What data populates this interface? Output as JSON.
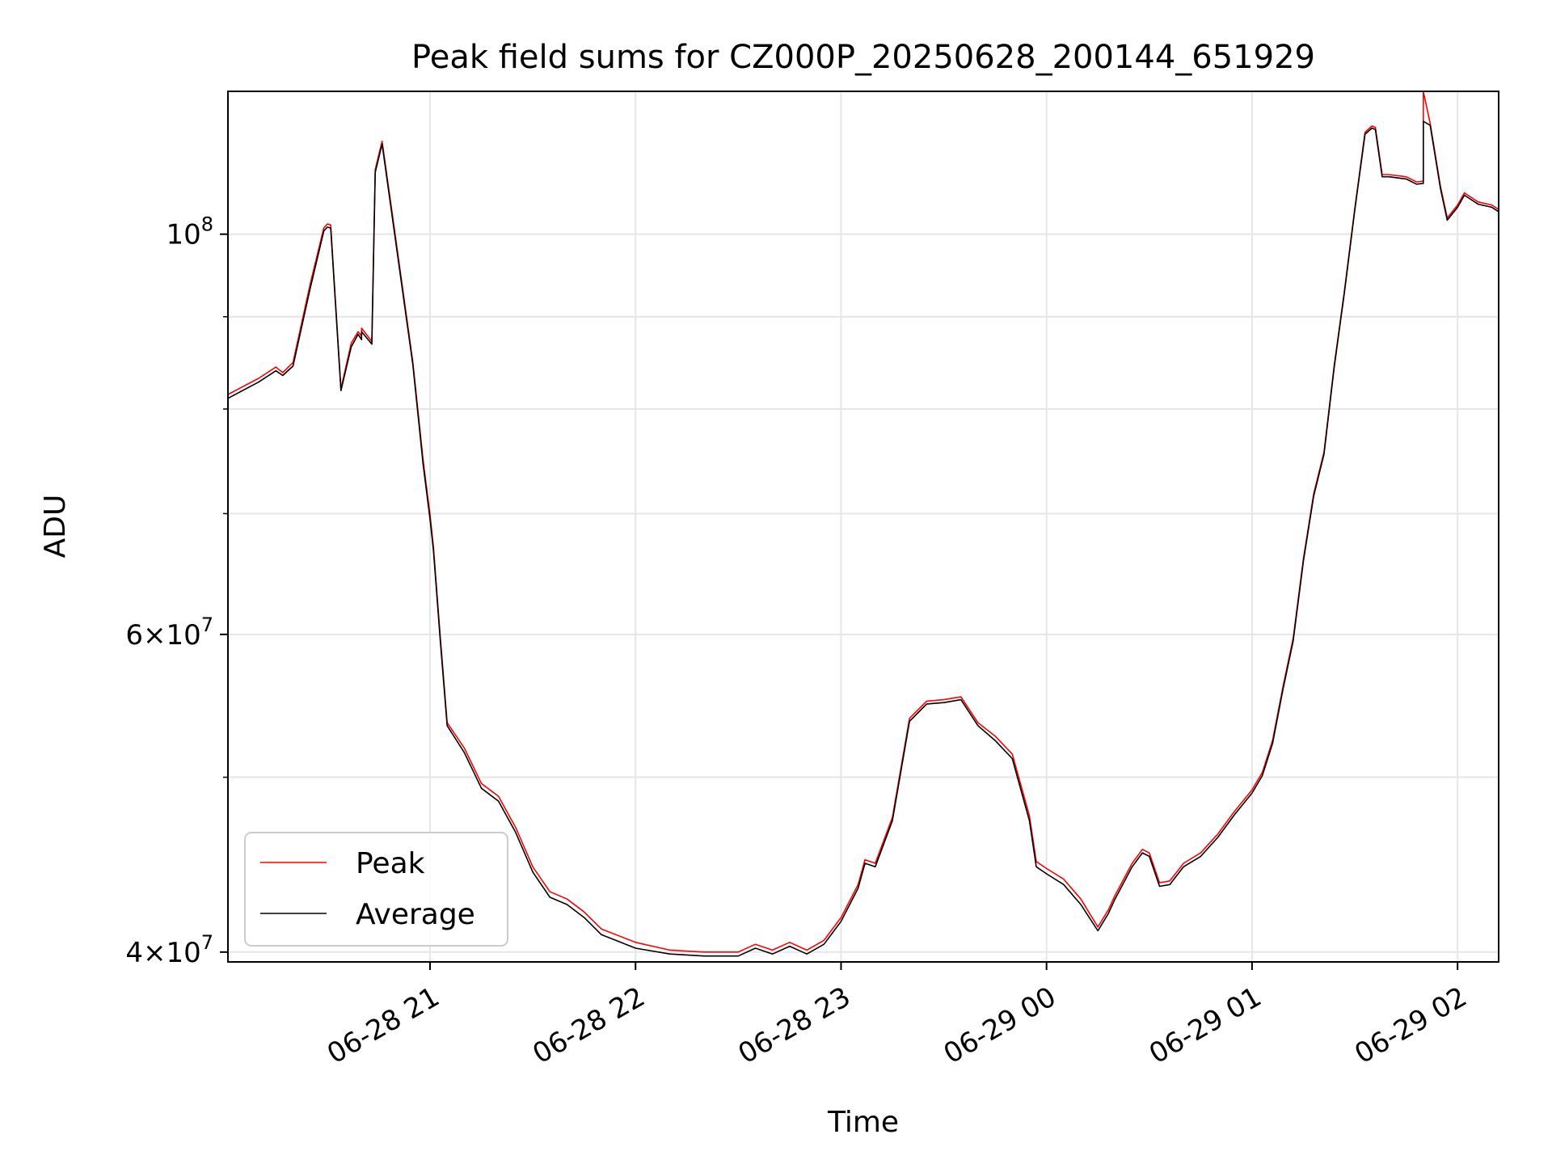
{
  "chart_data": {
    "type": "line",
    "title": "Peak field sums for CZ000P_20250628_200144_651929",
    "xlabel": "Time",
    "ylabel": "ADU",
    "yscale": "log",
    "ylim": [
      39500000,
      120000000
    ],
    "xlim": [
      "06-28 20:01",
      "06-29 02:12"
    ],
    "grid": true,
    "legend_position": "lower-left",
    "x_ticks": [
      {
        "label": "06-28 21",
        "t": "06-28 21:00"
      },
      {
        "label": "06-28 22",
        "t": "06-28 22:00"
      },
      {
        "label": "06-28 23",
        "t": "06-28 23:00"
      },
      {
        "label": "06-29 00",
        "t": "06-29 00:00"
      },
      {
        "label": "06-29 01",
        "t": "06-29 01:00"
      },
      {
        "label": "06-29 02",
        "t": "06-29 02:00"
      }
    ],
    "y_major_ticks": [
      {
        "mant": "4",
        "exp": "7",
        "value": 40000000
      },
      {
        "mant": "6",
        "exp": "7",
        "value": 60000000
      },
      {
        "mant": "",
        "exp": "8",
        "value": 100000000
      }
    ],
    "y_minor_gridlines": [
      50000000,
      70000000,
      80000000,
      90000000
    ],
    "x": [
      "06-28 20:01",
      "06-28 20:10",
      "06-28 20:15",
      "06-28 20:17",
      "06-28 20:20",
      "06-28 20:25",
      "06-28 20:29",
      "06-28 20:30",
      "06-28 20:31",
      "06-28 20:34",
      "06-28 20:37",
      "06-28 20:39",
      "06-28 20:40",
      "06-28 20:40",
      "06-28 20:43",
      "06-28 20:44",
      "06-28 20:46",
      "06-28 20:50",
      "06-28 20:55",
      "06-28 20:58",
      "06-28 21:00",
      "06-28 21:01",
      "06-28 21:02",
      "06-28 21:03",
      "06-28 21:05",
      "06-28 21:10",
      "06-28 21:15",
      "06-28 21:20",
      "06-28 21:25",
      "06-28 21:30",
      "06-28 21:35",
      "06-28 21:40",
      "06-28 21:45",
      "06-28 21:50",
      "06-28 22:00",
      "06-28 22:10",
      "06-28 22:20",
      "06-28 22:30",
      "06-28 22:35",
      "06-28 22:40",
      "06-28 22:45",
      "06-28 22:50",
      "06-28 22:55",
      "06-28 23:00",
      "06-28 23:05",
      "06-28 23:07",
      "06-28 23:10",
      "06-28 23:15",
      "06-28 23:20",
      "06-28 23:25",
      "06-28 23:30",
      "06-28 23:35",
      "06-28 23:40",
      "06-28 23:45",
      "06-28 23:50",
      "06-28 23:55",
      "06-28 23:57",
      "06-29 00:00",
      "06-29 00:05",
      "06-29 00:10",
      "06-29 00:15",
      "06-29 00:18",
      "06-29 00:20",
      "06-29 00:25",
      "06-29 00:28",
      "06-29 00:30",
      "06-29 00:33",
      "06-29 00:36",
      "06-29 00:40",
      "06-29 00:45",
      "06-29 00:50",
      "06-29 00:55",
      "06-29 01:00",
      "06-29 01:03",
      "06-29 01:06",
      "06-29 01:09",
      "06-29 01:12",
      "06-29 01:15",
      "06-29 01:18",
      "06-29 01:21",
      "06-29 01:24",
      "06-29 01:27",
      "06-29 01:30",
      "06-29 01:33",
      "06-29 01:35",
      "06-29 01:36",
      "06-29 01:38",
      "06-29 01:40",
      "06-29 01:45",
      "06-29 01:48",
      "06-29 01:50",
      "06-29 01:50",
      "06-29 01:52",
      "06-29 01:55",
      "06-29 01:57",
      "06-29 02:00",
      "06-29 02:02",
      "06-29 02:06",
      "06-29 02:10",
      "06-29 02:12"
    ],
    "series": [
      {
        "name": "Peak",
        "color": "#ff0000",
        "values": [
          81500000,
          83200000,
          84400000,
          83800000,
          84900000,
          93800000,
          100800000,
          101300000,
          101200000,
          82100000,
          87000000,
          88300000,
          87800000,
          88700000,
          87200000,
          108600000,
          112600000,
          99400000,
          84900000,
          74900000,
          69900000,
          67100000,
          63300000,
          59800000,
          53600000,
          51900000,
          49600000,
          48800000,
          46900000,
          44600000,
          43200000,
          42800000,
          42100000,
          41200000,
          40500000,
          40100000,
          40000000,
          40000000,
          40400000,
          40100000,
          40500000,
          40100000,
          40600000,
          41800000,
          43600000,
          45000000,
          44800000,
          47500000,
          53900000,
          55100000,
          55200000,
          55400000,
          53600000,
          52700000,
          51500000,
          47600000,
          44900000,
          44500000,
          43900000,
          42800000,
          41300000,
          42200000,
          43000000,
          44800000,
          45600000,
          45400000,
          43700000,
          43800000,
          44800000,
          45400000,
          46500000,
          47900000,
          49200000,
          50300000,
          52400000,
          56100000,
          59700000,
          66100000,
          71800000,
          75700000,
          84600000,
          93100000,
          103300000,
          113900000,
          114800000,
          114600000,
          107900000,
          107900000,
          107600000,
          106900000,
          107000000,
          120000000,
          115200000,
          106300000,
          102100000,
          103800000,
          105400000,
          104200000,
          103800000,
          103200000
        ]
      },
      {
        "name": "Average",
        "color": "#000000",
        "values": [
          81100000,
          82800000,
          84000000,
          83500000,
          84500000,
          93300000,
          100400000,
          100900000,
          100800000,
          81900000,
          86600000,
          88000000,
          87400000,
          88300000,
          86900000,
          108200000,
          112200000,
          99000000,
          84600000,
          74500000,
          69500000,
          66800000,
          63000000,
          59500000,
          53400000,
          51600000,
          49300000,
          48500000,
          46600000,
          44300000,
          42900000,
          42500000,
          41800000,
          40900000,
          40200000,
          39900000,
          39800000,
          39800000,
          40200000,
          39900000,
          40300000,
          39900000,
          40400000,
          41600000,
          43400000,
          44800000,
          44600000,
          47300000,
          53700000,
          54900000,
          55000000,
          55200000,
          53400000,
          52400000,
          51200000,
          47300000,
          44600000,
          44200000,
          43600000,
          42500000,
          41100000,
          42000000,
          42800000,
          44600000,
          45400000,
          45200000,
          43500000,
          43600000,
          44600000,
          45200000,
          46300000,
          47700000,
          49000000,
          50100000,
          52200000,
          55900000,
          59500000,
          65900000,
          71600000,
          75500000,
          84400000,
          92900000,
          103100000,
          113600000,
          114500000,
          114300000,
          107600000,
          107600000,
          107300000,
          106600000,
          106700000,
          115500000,
          114900000,
          106000000,
          101800000,
          103500000,
          105100000,
          103900000,
          103500000,
          102900000
        ]
      }
    ]
  }
}
